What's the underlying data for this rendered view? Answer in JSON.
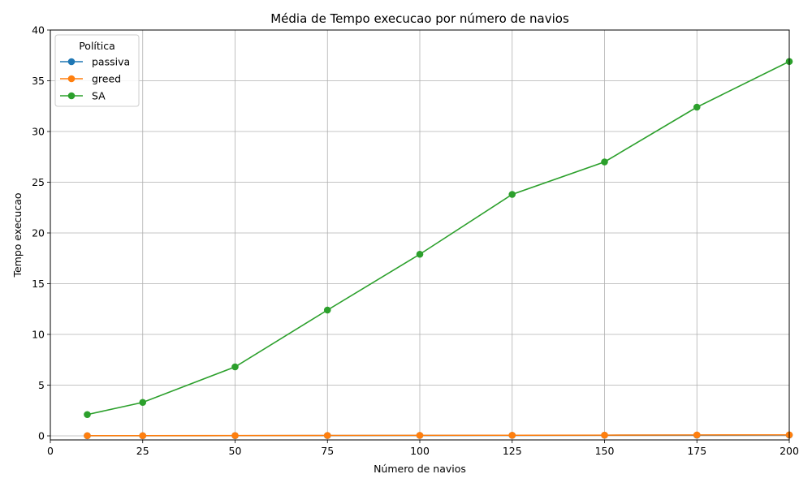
{
  "chart_data": {
    "type": "line",
    "title": "Média de Tempo execucao por número de navios",
    "xlabel": "Número de navios",
    "ylabel": "Tempo execucao",
    "xlim": [
      0,
      200
    ],
    "ylim": [
      -0.4,
      40
    ],
    "xticks": [
      0,
      25,
      50,
      75,
      100,
      125,
      150,
      175,
      200
    ],
    "yticks": [
      0,
      5,
      10,
      15,
      20,
      25,
      30,
      35,
      40
    ],
    "grid": true,
    "legend": {
      "title": "Política",
      "placement": "top-left"
    },
    "x": [
      10,
      25,
      50,
      75,
      100,
      125,
      150,
      175,
      200
    ],
    "series": [
      {
        "name": "passiva",
        "color": "#1f77b4",
        "values": [
          0.01,
          0.01,
          0.02,
          0.03,
          0.04,
          0.05,
          0.06,
          0.07,
          0.08
        ]
      },
      {
        "name": "greed",
        "color": "#ff7f0e",
        "values": [
          0.02,
          0.02,
          0.03,
          0.04,
          0.05,
          0.06,
          0.07,
          0.09,
          0.1
        ]
      },
      {
        "name": "SA",
        "color": "#2ca02c",
        "values": [
          2.1,
          3.3,
          6.8,
          12.4,
          17.9,
          23.8,
          27.0,
          32.4,
          36.9
        ]
      }
    ]
  }
}
